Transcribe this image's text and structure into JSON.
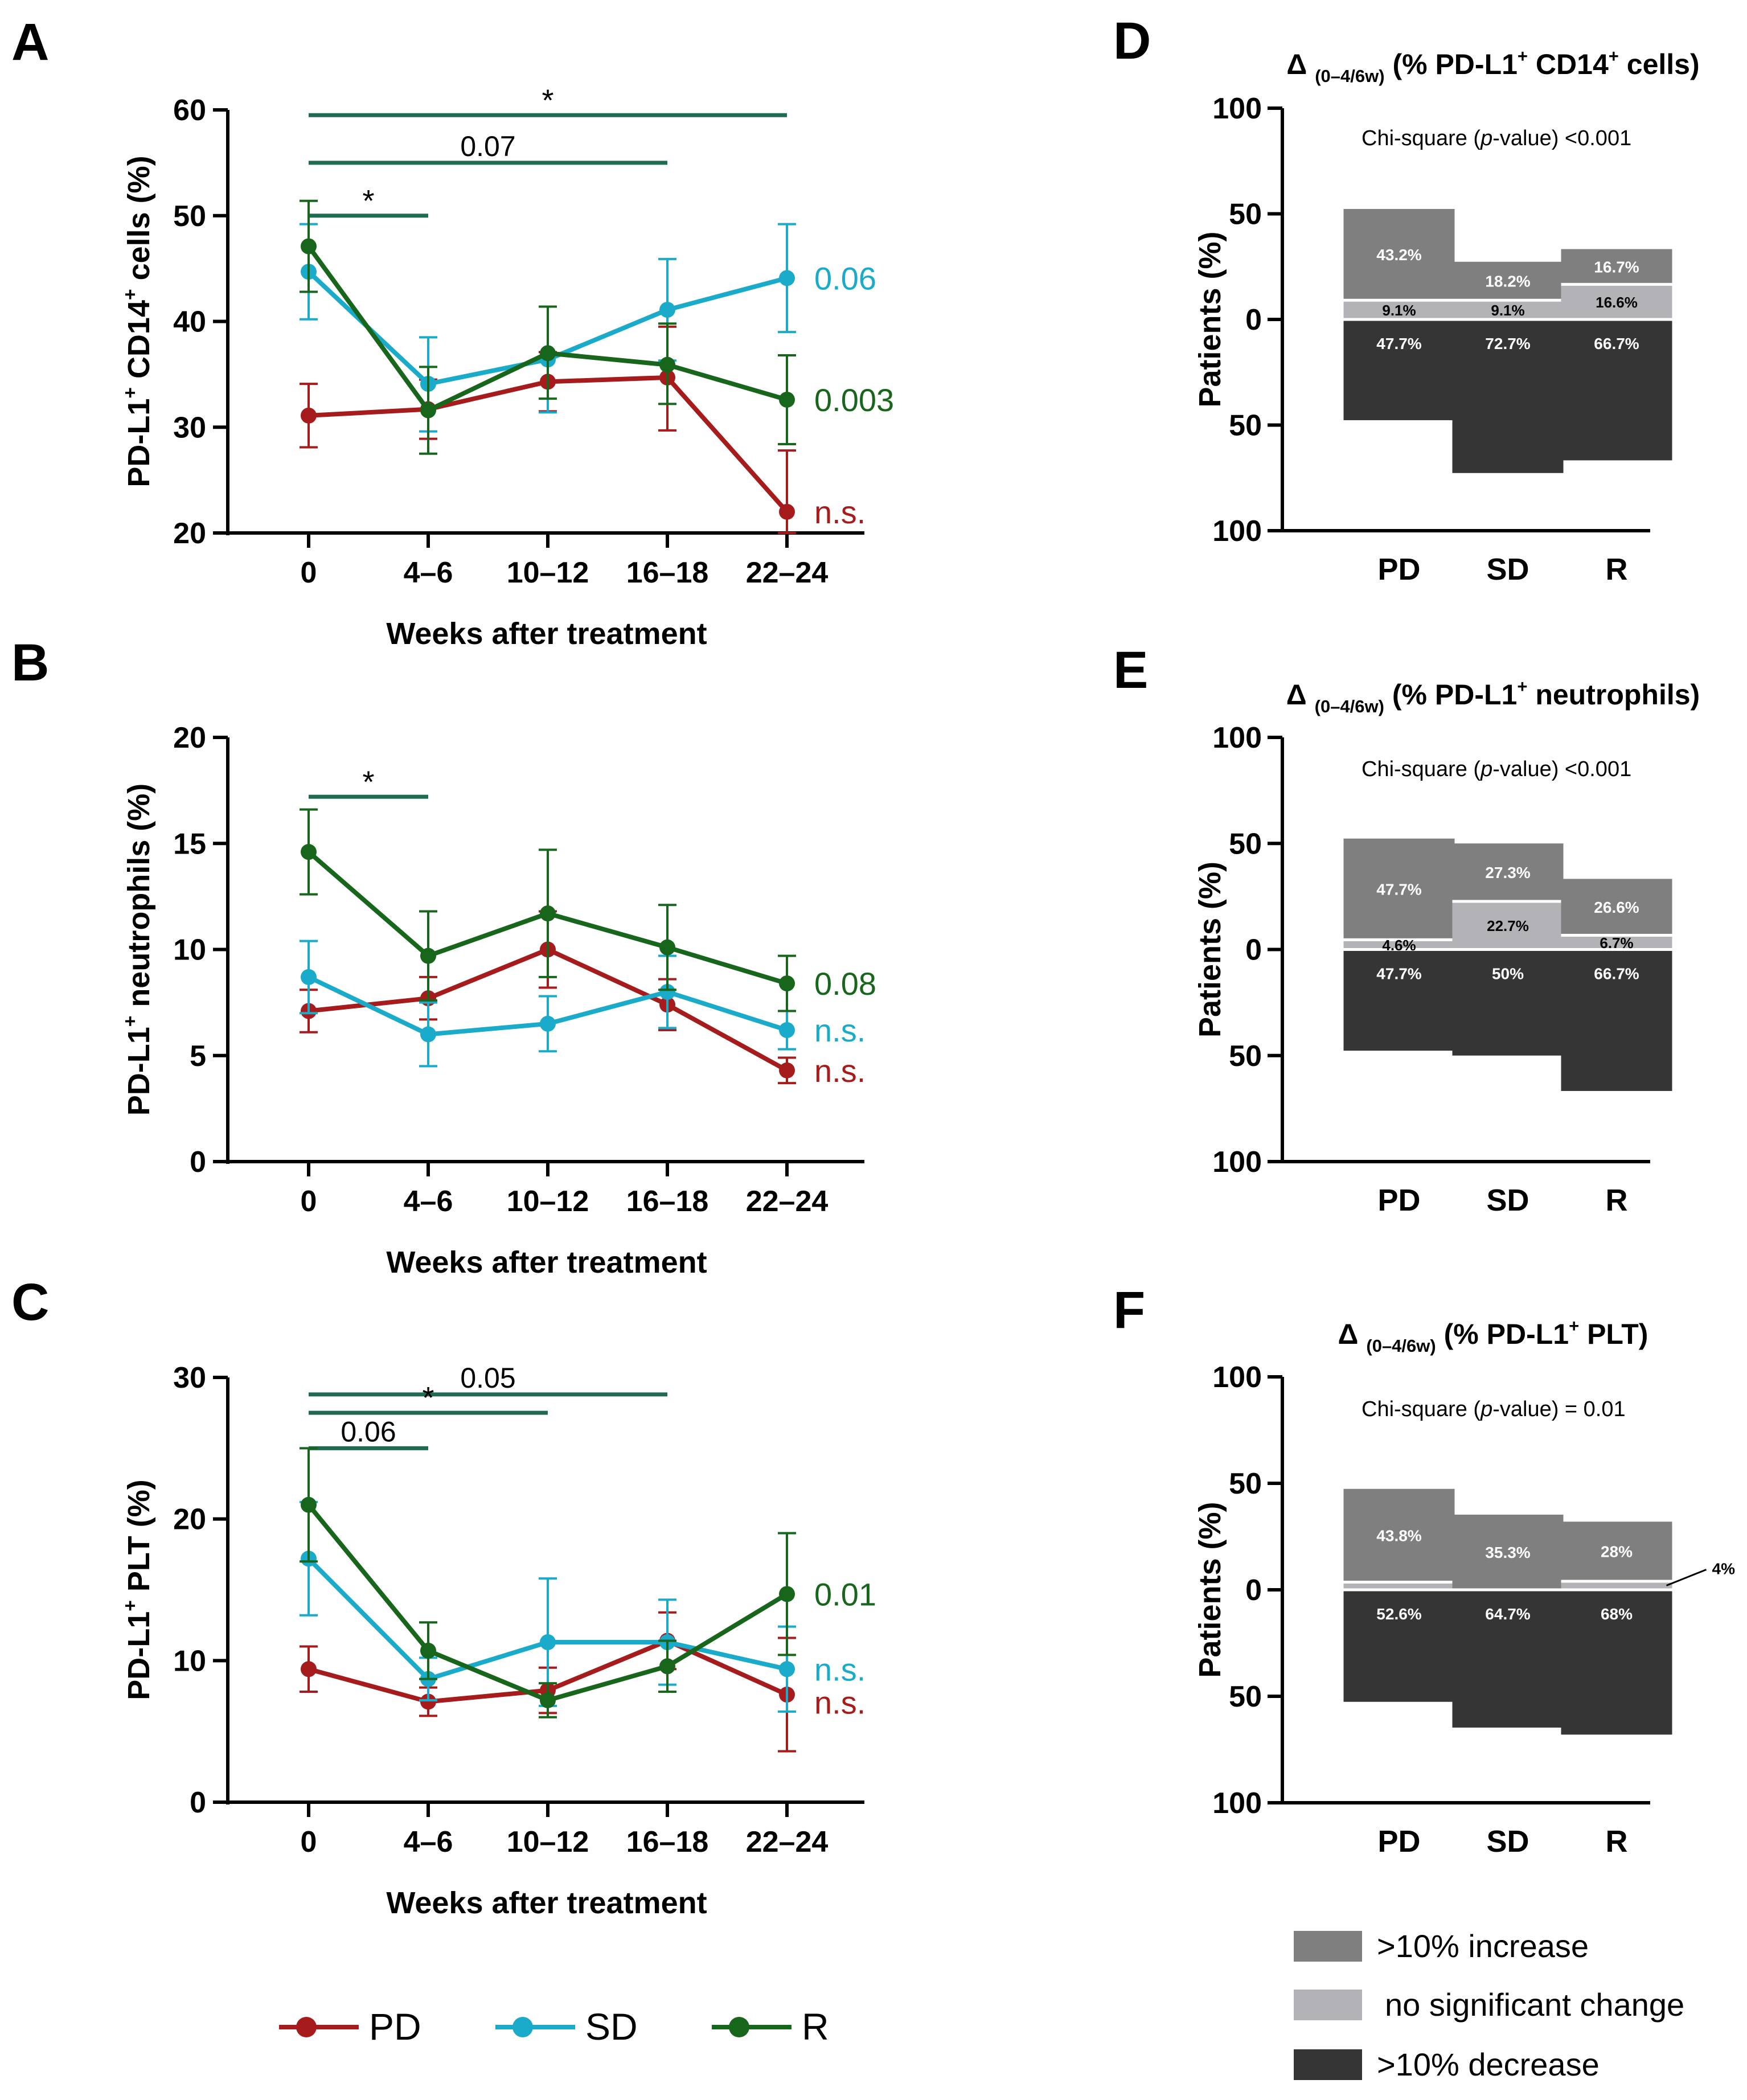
{
  "colors": {
    "PD": "#A61C1C",
    "SD": "#1AABCB",
    "R": "#17661C",
    "bracket": "#1E6B4F",
    "increase": "#7F7F7F",
    "nochange": "#B3B3B7",
    "decrease": "#353535"
  },
  "legend_lines": [
    {
      "key": "PD",
      "label": "PD"
    },
    {
      "key": "SD",
      "label": "SD"
    },
    {
      "key": "R",
      "label": "R"
    }
  ],
  "legend_bars": [
    {
      "key": "increase",
      "label": ">10% increase"
    },
    {
      "key": "nochange",
      "label": "no significant change"
    },
    {
      "key": "decrease",
      "label": ">10% decrease"
    }
  ],
  "chart_data": [
    {
      "panel": "A",
      "type": "line",
      "title": "",
      "ylabel_parts": [
        {
          "t": "PD-L1"
        },
        {
          "t": "+",
          "sup": true
        },
        {
          "t": " CD14"
        },
        {
          "t": "+",
          "sup": true
        },
        {
          "t": " cells (%)"
        }
      ],
      "xlabel": "Weeks after treatment",
      "categories": [
        "0",
        "4–6",
        "10–12",
        "16–18",
        "22–24"
      ],
      "ylim": [
        20,
        60
      ],
      "yticks": [
        20,
        30,
        40,
        50,
        60
      ],
      "series": [
        {
          "name": "PD",
          "values": [
            31.1,
            31.7,
            34.3,
            34.7,
            22.0
          ],
          "err_up": [
            3.0,
            2.8,
            2.8,
            4.8,
            5.8
          ],
          "err_down": [
            3.0,
            2.8,
            2.8,
            5.0,
            2.0
          ],
          "end_label": "n.s."
        },
        {
          "name": "SD",
          "values": [
            44.7,
            34.1,
            36.4,
            41.1,
            44.1
          ],
          "err_up": [
            4.5,
            4.4,
            5.0,
            4.8,
            5.1
          ],
          "err_down": [
            4.5,
            4.5,
            5.0,
            4.8,
            5.1
          ],
          "end_label": "0.06"
        },
        {
          "name": "R",
          "values": [
            47.1,
            31.6,
            37.0,
            35.9,
            32.6
          ],
          "err_up": [
            4.3,
            4.1,
            4.4,
            3.9,
            4.2
          ],
          "err_down": [
            4.3,
            4.1,
            4.3,
            3.7,
            4.2
          ],
          "end_label": "0.003"
        }
      ],
      "brackets": [
        {
          "from": 0,
          "to": 4,
          "y": 59.5,
          "label": "*"
        },
        {
          "from": 0,
          "to": 3,
          "y": 55.0,
          "label": "0.07"
        },
        {
          "from": 0,
          "to": 1,
          "y": 50.0,
          "label": "*"
        }
      ]
    },
    {
      "panel": "B",
      "type": "line",
      "title": "",
      "ylabel_parts": [
        {
          "t": "PD-L1"
        },
        {
          "t": "+",
          "sup": true
        },
        {
          "t": " neutrophils (%)"
        }
      ],
      "xlabel": "Weeks after treatment",
      "categories": [
        "0",
        "4–6",
        "10–12",
        "16–18",
        "22–24"
      ],
      "ylim": [
        0,
        20
      ],
      "yticks": [
        0,
        5,
        10,
        15,
        20
      ],
      "series": [
        {
          "name": "PD",
          "values": [
            7.1,
            7.7,
            10.0,
            7.4,
            4.3
          ],
          "err_up": [
            1.0,
            1.0,
            1.8,
            1.2,
            0.6
          ],
          "err_down": [
            1.0,
            1.0,
            1.8,
            1.2,
            0.6
          ],
          "end_label": "n.s."
        },
        {
          "name": "SD",
          "values": [
            8.7,
            6.0,
            6.5,
            8.0,
            6.2
          ],
          "err_up": [
            1.7,
            1.5,
            1.3,
            1.7,
            0.9
          ],
          "err_down": [
            1.7,
            1.5,
            1.3,
            1.7,
            0.9
          ],
          "end_label": "n.s."
        },
        {
          "name": "R",
          "values": [
            14.6,
            9.7,
            11.7,
            10.1,
            8.4
          ],
          "err_up": [
            2.0,
            2.1,
            3.0,
            2.0,
            1.3
          ],
          "err_down": [
            2.0,
            2.1,
            3.0,
            2.0,
            1.3
          ],
          "end_label": "0.08"
        }
      ],
      "brackets": [
        {
          "from": 0,
          "to": 1,
          "y": 17.2,
          "label": "*"
        }
      ]
    },
    {
      "panel": "C",
      "type": "line",
      "title": "",
      "ylabel_parts": [
        {
          "t": "PD-L1"
        },
        {
          "t": "+",
          "sup": true
        },
        {
          "t": " PLT (%)"
        }
      ],
      "xlabel": "Weeks after treatment",
      "categories": [
        "0",
        "4–6",
        "10–12",
        "16–18",
        "22–24"
      ],
      "ylim": [
        0,
        30
      ],
      "yticks": [
        0,
        10,
        20,
        30
      ],
      "series": [
        {
          "name": "PD",
          "values": [
            9.4,
            7.1,
            7.9,
            11.4,
            7.6
          ],
          "err_up": [
            1.6,
            1.0,
            1.6,
            2.0,
            4.0
          ],
          "err_down": [
            1.6,
            1.0,
            1.6,
            2.0,
            4.0
          ],
          "end_label": "n.s."
        },
        {
          "name": "SD",
          "values": [
            17.2,
            8.7,
            11.3,
            11.3,
            9.4
          ],
          "err_up": [
            4.0,
            1.5,
            4.5,
            3.0,
            3.0
          ],
          "err_down": [
            4.0,
            1.5,
            4.5,
            3.0,
            3.0
          ],
          "end_label": "n.s."
        },
        {
          "name": "R",
          "values": [
            21.0,
            10.7,
            7.2,
            9.6,
            14.7
          ],
          "err_up": [
            4.0,
            2.0,
            1.2,
            1.8,
            4.3
          ],
          "err_down": [
            4.0,
            2.0,
            1.2,
            1.8,
            4.3
          ],
          "end_label": "0.01"
        }
      ],
      "brackets": [
        {
          "from": 0,
          "to": 3,
          "y": 28.8,
          "label": "0.05"
        },
        {
          "from": 0,
          "to": 2,
          "y": 27.5,
          "label": "*"
        },
        {
          "from": 0,
          "to": 1,
          "y": 25.0,
          "label": "0.06"
        }
      ]
    },
    {
      "panel": "D",
      "type": "bar",
      "title_parts": [
        {
          "t": "Δ "
        },
        {
          "t": "(0–4/6w)",
          "sub": true
        },
        {
          "t": " (% PD-L1"
        },
        {
          "t": "+",
          "sup": true
        },
        {
          "t": " CD14"
        },
        {
          "t": "+",
          "sup": true
        },
        {
          "t": " cells)"
        }
      ],
      "ylabel": "Patients (%)",
      "annotation": "Chi-square (p-value) <0.001",
      "categories": [
        "PD",
        "SD",
        "R"
      ],
      "ylim": [
        -100,
        100
      ],
      "yticks": [
        100,
        50,
        0,
        50,
        100
      ],
      "bars": [
        {
          "group": "PD",
          "increase": 43.2,
          "nochange": 9.1,
          "decrease": 47.7,
          "labels": {
            "increase": "43.2%",
            "nochange": "9.1%",
            "decrease": "47.7%"
          }
        },
        {
          "group": "SD",
          "increase": 18.2,
          "nochange": 9.1,
          "decrease": 72.7,
          "labels": {
            "increase": "18.2%",
            "nochange": "9.1%",
            "decrease": "72.7%"
          }
        },
        {
          "group": "R",
          "increase": 16.7,
          "nochange": 16.6,
          "decrease": 66.7,
          "labels": {
            "increase": "16.7%",
            "nochange": "16.6%",
            "decrease": "66.7%"
          }
        }
      ]
    },
    {
      "panel": "E",
      "type": "bar",
      "title_parts": [
        {
          "t": "Δ "
        },
        {
          "t": "(0–4/6w)",
          "sub": true
        },
        {
          "t": " (% PD-L1"
        },
        {
          "t": "+",
          "sup": true
        },
        {
          "t": " neutrophils)"
        }
      ],
      "ylabel": "Patients (%)",
      "annotation": "Chi-square (p-value) <0.001",
      "categories": [
        "PD",
        "SD",
        "R"
      ],
      "ylim": [
        -100,
        100
      ],
      "yticks": [
        100,
        50,
        0,
        50,
        100
      ],
      "bars": [
        {
          "group": "PD",
          "increase": 47.7,
          "nochange": 4.6,
          "decrease": 47.7,
          "labels": {
            "increase": "47.7%",
            "nochange": "4.6%",
            "decrease": "47.7%"
          }
        },
        {
          "group": "SD",
          "increase": 27.3,
          "nochange": 22.7,
          "decrease": 50,
          "labels": {
            "increase": "27.3%",
            "nochange": "22.7%",
            "decrease": "50%"
          }
        },
        {
          "group": "R",
          "increase": 26.6,
          "nochange": 6.7,
          "decrease": 66.7,
          "labels": {
            "increase": "26.6%",
            "nochange": "6.7%",
            "decrease": "66.7%"
          }
        }
      ]
    },
    {
      "panel": "F",
      "type": "bar",
      "title_parts": [
        {
          "t": "Δ "
        },
        {
          "t": "(0–4/6w)",
          "sub": true
        },
        {
          "t": " (% PD-L1"
        },
        {
          "t": "+",
          "sup": true
        },
        {
          "t": " PLT)"
        }
      ],
      "ylabel": "Patients (%)",
      "annotation": "Chi-square (p-value) = 0.01",
      "categories": [
        "PD",
        "SD",
        "R"
      ],
      "ylim": [
        -100,
        100
      ],
      "yticks": [
        100,
        50,
        0,
        50,
        100
      ],
      "bars": [
        {
          "group": "PD",
          "increase": 43.8,
          "nochange": 3.6,
          "decrease": 52.6,
          "labels": {
            "increase": "43.8%",
            "nochange": "",
            "decrease": "52.6%"
          }
        },
        {
          "group": "SD",
          "increase": 35.3,
          "nochange": 0,
          "decrease": 64.7,
          "labels": {
            "increase": "35.3%",
            "nochange": "",
            "decrease": "64.7%"
          }
        },
        {
          "group": "R",
          "increase": 28,
          "nochange": 4,
          "decrease": 68,
          "labels": {
            "increase": "28%",
            "nochange": "4%",
            "decrease": "68%"
          },
          "nochange_callout": true
        }
      ]
    }
  ]
}
